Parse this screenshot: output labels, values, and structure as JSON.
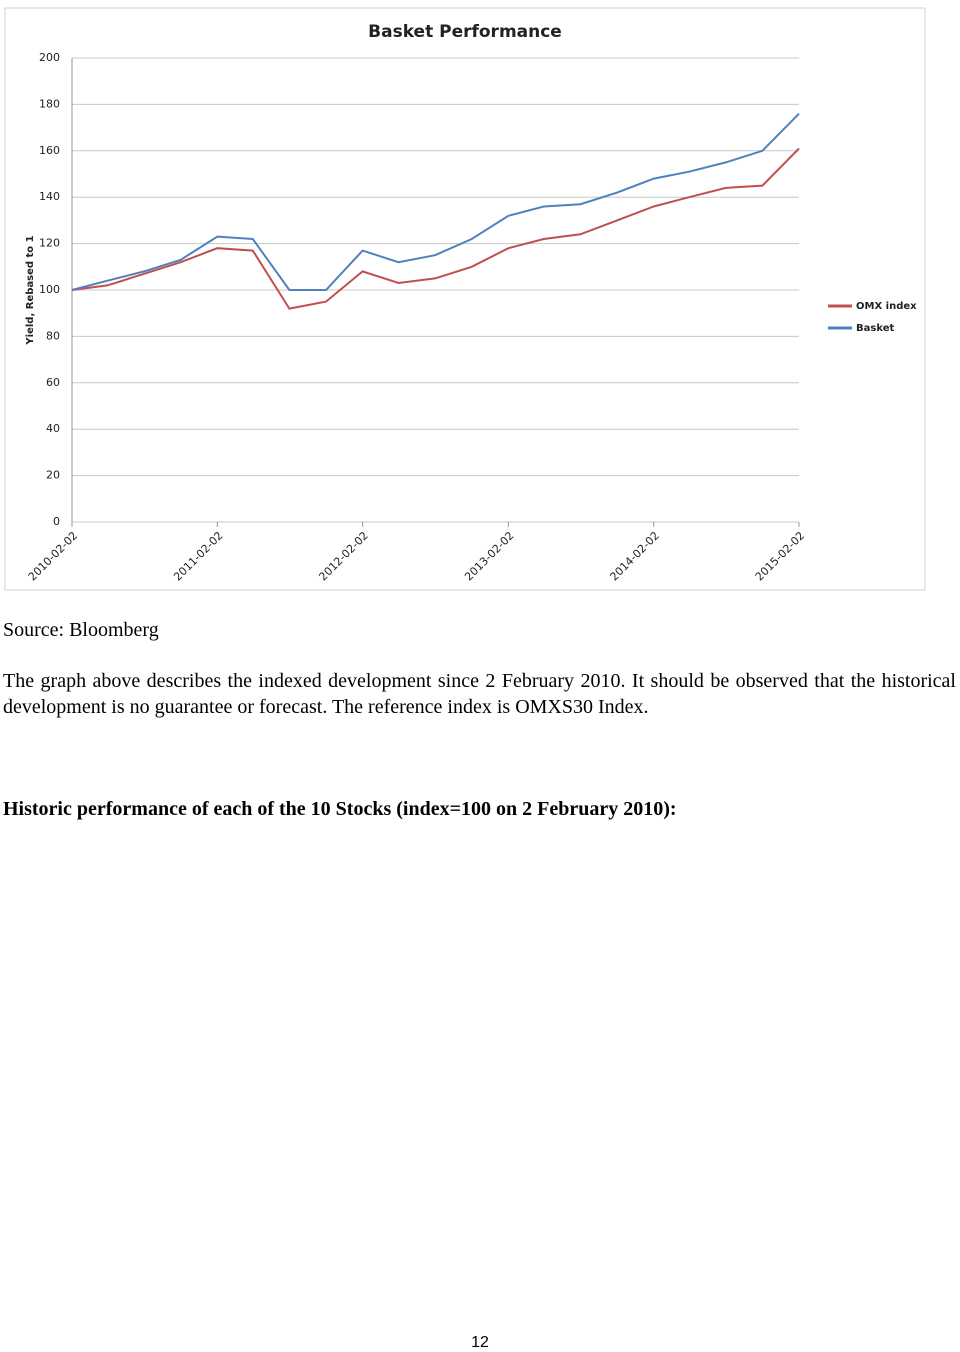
{
  "chart_data": {
    "type": "line",
    "title": "Basket Performance",
    "y_label": "Yield, Rebased to 1",
    "x": [
      "2010-02-02",
      "2010-05-02",
      "2010-08-02",
      "2010-11-02",
      "2011-02-02",
      "2011-05-02",
      "2011-08-02",
      "2011-11-02",
      "2012-02-02",
      "2012-05-02",
      "2012-08-02",
      "2012-11-02",
      "2013-02-02",
      "2013-05-02",
      "2013-08-02",
      "2013-11-02",
      "2014-02-02",
      "2014-05-02",
      "2014-08-02",
      "2014-11-02",
      "2015-02-02"
    ],
    "series": [
      {
        "name": "OMX index",
        "color": "#c0504d",
        "values": [
          100,
          102,
          107,
          112,
          118,
          117,
          92,
          95,
          108,
          103,
          105,
          110,
          118,
          122,
          124,
          130,
          136,
          140,
          144,
          145,
          161
        ]
      },
      {
        "name": "Basket",
        "color": "#4f81bd",
        "values": [
          100,
          104,
          108,
          113,
          123,
          122,
          100,
          100,
          117,
          112,
          115,
          122,
          132,
          136,
          137,
          142,
          148,
          151,
          155,
          160,
          176
        ]
      }
    ],
    "xlim": [
      "2010-02-02",
      "2015-02-02"
    ],
    "xticks": [
      "2010-02-02",
      "2011-02-02",
      "2012-02-02",
      "2013-02-02",
      "2014-02-02",
      "2015-02-02"
    ],
    "ylim": [
      0,
      200
    ],
    "yticks": [
      0,
      20,
      40,
      60,
      80,
      100,
      120,
      140,
      160,
      180,
      200
    ],
    "grid": true,
    "legend": "right"
  },
  "source": "Source: Bloomberg",
  "paragraph": "The graph above describes the indexed development since 2 February 2010. It should be observed that the historical development is no guarantee or forecast. The reference index is OMXS30 Index.",
  "heading": "Historic performance of each of the 10 Stocks (index=100 on 2 February 2010):",
  "page_number": "12"
}
